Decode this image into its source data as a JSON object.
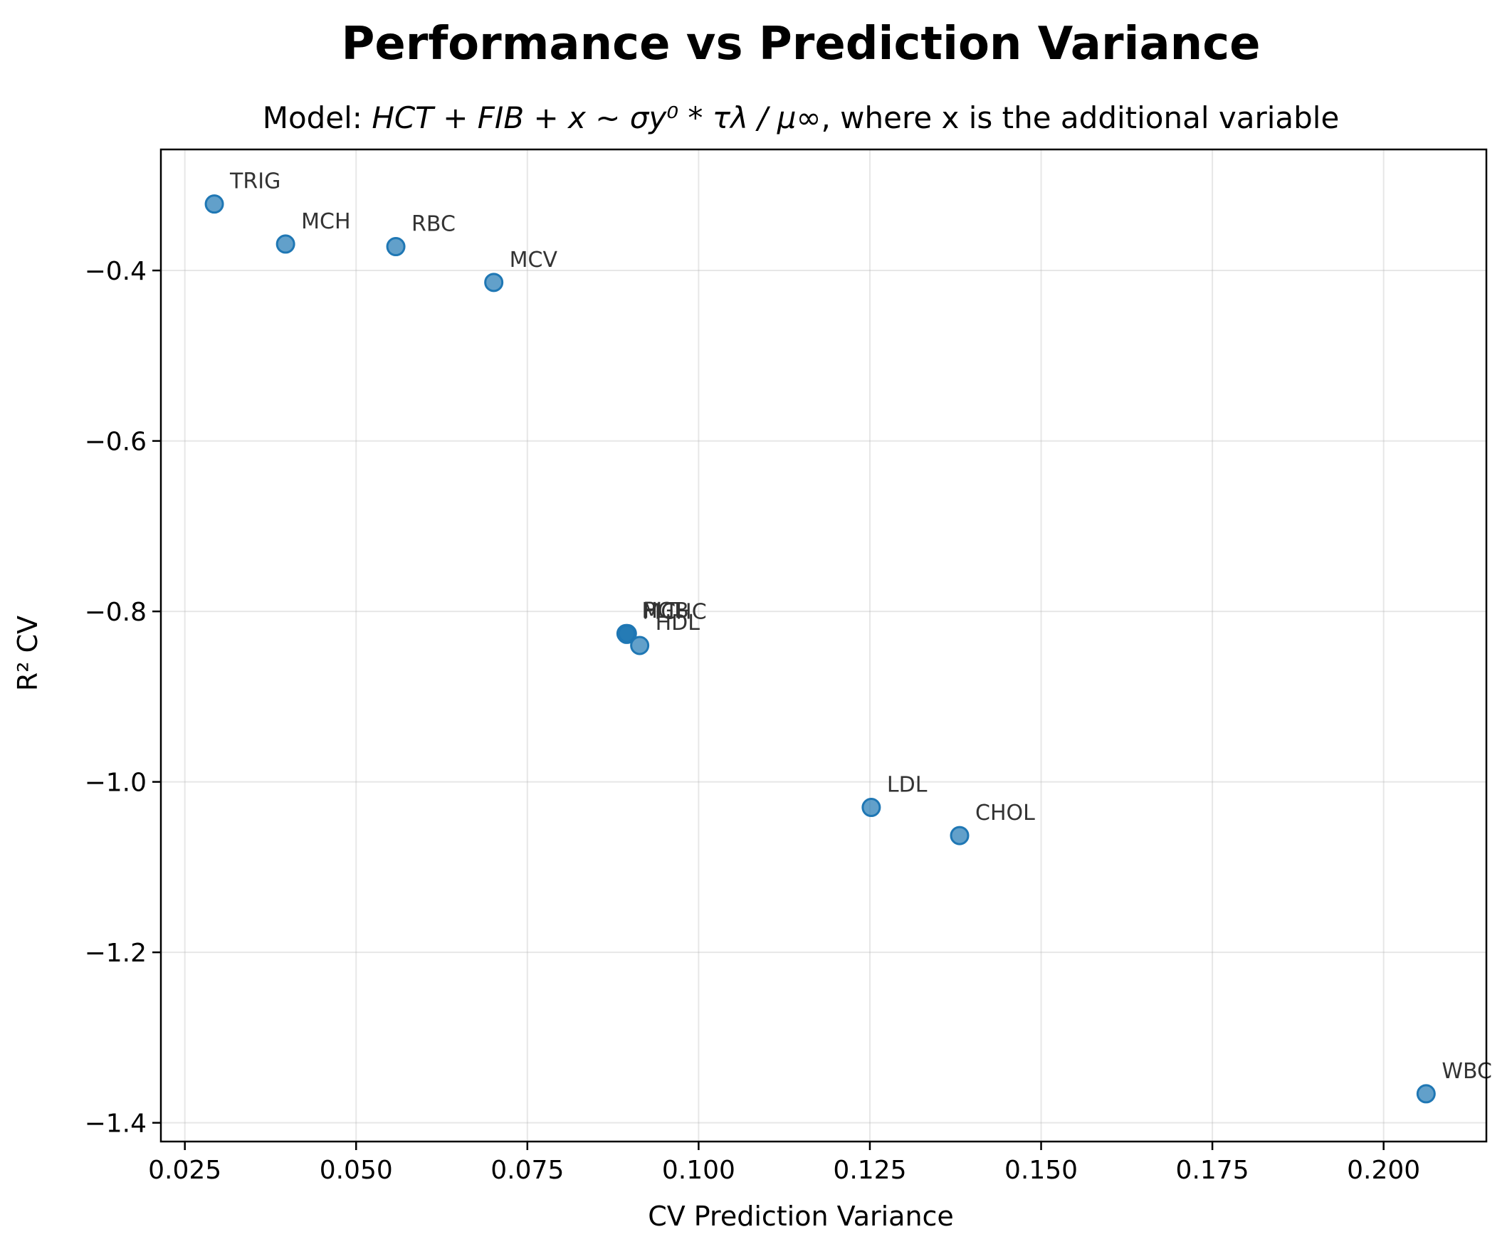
{
  "colors": {
    "point": "#1f77b4",
    "point_edge": "#1f77b4"
  },
  "chart_data": {
    "type": "scatter",
    "title": "Performance vs Prediction Variance",
    "subtitle": {
      "prefix": "Model: ",
      "formula": "HCT + FIB + x ~ σy⁰ * τλ / μ∞",
      "suffix": ", where x is the additional variable"
    },
    "xlabel": "CV Prediction Variance",
    "ylabel": "R² CV",
    "xlim": [
      0.0215,
      0.215
    ],
    "ylim": [
      -1.422,
      -0.258
    ],
    "xticks": [
      0.025,
      0.05,
      0.075,
      0.1,
      0.125,
      0.15,
      0.175,
      0.2
    ],
    "xtick_labels": [
      "0.025",
      "0.050",
      "0.075",
      "0.100",
      "0.125",
      "0.150",
      "0.175",
      "0.200"
    ],
    "yticks": [
      -0.4,
      -0.6,
      -0.8,
      -1.0,
      -1.2,
      -1.4
    ],
    "ytick_labels": [
      "−0.4",
      "−0.6",
      "−0.8",
      "−1.0",
      "−1.2",
      "−1.4"
    ],
    "grid": true,
    "points": [
      {
        "label": "TRIG",
        "x": 0.0293,
        "y": -0.322
      },
      {
        "label": "MCH",
        "x": 0.0397,
        "y": -0.369
      },
      {
        "label": "RBC",
        "x": 0.0558,
        "y": -0.372
      },
      {
        "label": "MCV",
        "x": 0.0701,
        "y": -0.414
      },
      {
        "label": "HGB",
        "x": 0.0894,
        "y": -0.826
      },
      {
        "label": "MCHC",
        "x": 0.0895,
        "y": -0.827
      },
      {
        "label": "PLT",
        "x": 0.0896,
        "y": -0.826
      },
      {
        "label": "HDL",
        "x": 0.0914,
        "y": -0.84
      },
      {
        "label": "LDL",
        "x": 0.1252,
        "y": -1.03
      },
      {
        "label": "CHOL",
        "x": 0.1381,
        "y": -1.063
      },
      {
        "label": "WBC",
        "x": 0.2062,
        "y": -1.366
      }
    ]
  }
}
